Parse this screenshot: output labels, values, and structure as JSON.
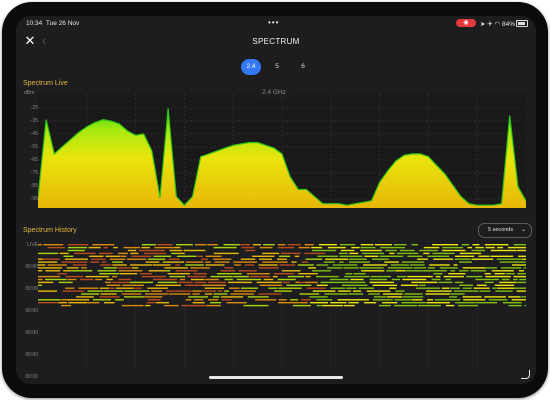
{
  "status_bar": {
    "time": "10:34",
    "date": "Tue 26 Nov",
    "battery": "84%",
    "menu_dots": "•••",
    "rec_icon": "record-icon"
  },
  "nav": {
    "title": "SPECTRUM",
    "close_label": "✕",
    "back_label": "‹"
  },
  "bands": [
    "2.4",
    "5",
    "6"
  ],
  "selected_band": "2.4",
  "spectrum_live": {
    "title": "Spectrum Live",
    "band_label": "2.4 GHz",
    "y_unit": "dBm",
    "y_ticks": [
      "-25",
      "-35",
      "-45",
      "-55",
      "-65",
      "-75",
      "-85",
      "-95"
    ]
  },
  "spectrum_history": {
    "title": "Spectrum History",
    "interval": "5 seconds",
    "y_ticks": [
      "LIVE",
      "00:00",
      "00:00",
      "00:00",
      "00:00",
      "00:00",
      "00:00"
    ]
  },
  "colors": {
    "accent_blue": "#3478f6",
    "section_title": "#e2b53a",
    "rec_red": "#e6393e"
  },
  "chart_data": {
    "type": "area",
    "title": "Spectrum Live",
    "subtitle": "2.4 GHz",
    "ylabel": "dBm",
    "ylim": [
      -100,
      -20
    ],
    "x": [
      0,
      1,
      2,
      3,
      4,
      5,
      6,
      7,
      8,
      9,
      10,
      11,
      12,
      13,
      14,
      15,
      16,
      17,
      18,
      19,
      20,
      21,
      22,
      23,
      24,
      25,
      26,
      27,
      28,
      29,
      30,
      31,
      32,
      33,
      34,
      35,
      36,
      37,
      38,
      39,
      40,
      41,
      42,
      43,
      44,
      45,
      46,
      47,
      48,
      49,
      50,
      51,
      52,
      53,
      54,
      55,
      56,
      57,
      58,
      59,
      60
    ],
    "series": [
      {
        "values": [
          -93,
          -38,
          -62,
          -57,
          -52,
          -47,
          -43,
          -40,
          -38,
          -39,
          -41,
          -46,
          -49,
          -48,
          -60,
          -93,
          -30,
          -92,
          -98,
          -92,
          -64,
          -62,
          -60,
          -58,
          -56,
          -55,
          -54,
          -54,
          -56,
          -58,
          -62,
          -78,
          -87,
          -87,
          -92,
          -97,
          -97,
          -97,
          -98,
          -97,
          -96,
          -95,
          -82,
          -74,
          -67,
          -63,
          -62,
          -62,
          -64,
          -70,
          -76,
          -84,
          -92,
          -97,
          -98,
          -98,
          -98,
          -97,
          -35,
          -85,
          -95
        ]
      }
    ]
  }
}
